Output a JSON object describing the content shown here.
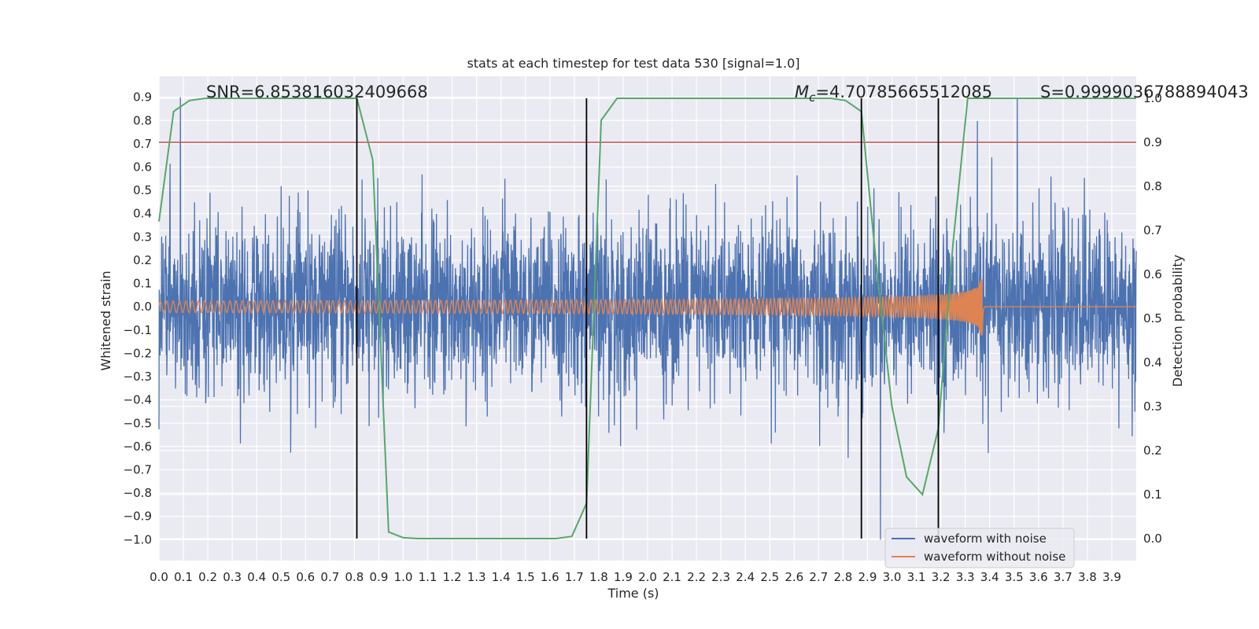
{
  "chart_data": {
    "type": "line",
    "title": "stats at each timestep for test data 530 [signal=1.0]",
    "xlabel": "Time (s)",
    "ylabel_left": "Whitened strain",
    "ylabel_right": "Detection probability",
    "xlim": [
      0.0,
      4.0
    ],
    "ylim_left": [
      -1.09,
      0.99
    ],
    "ylim_right": [
      -0.05,
      1.05
    ],
    "x_ticks": [
      0.0,
      0.1,
      0.2,
      0.3,
      0.4,
      0.5,
      0.6,
      0.7,
      0.8,
      0.9,
      1.0,
      1.1,
      1.2,
      1.3,
      1.4,
      1.5,
      1.6,
      1.7,
      1.8,
      1.9,
      2.0,
      2.1,
      2.2,
      2.3,
      2.4,
      2.5,
      2.6,
      2.7,
      2.8,
      2.9,
      3.0,
      3.1,
      3.2,
      3.3,
      3.4,
      3.5,
      3.6,
      3.7,
      3.8,
      3.9
    ],
    "x_tick_labels": [
      "0.0",
      "0.1",
      "0.2",
      "0.3",
      "0.4",
      "0.5",
      "0.6",
      "0.7",
      "0.8",
      "0.9",
      "1.0",
      "1.1",
      "1.2",
      "1.3",
      "1.4",
      "1.5",
      "1.6",
      "1.7",
      "1.8",
      "1.9",
      "2.0",
      "2.1",
      "2.2",
      "2.3",
      "2.4",
      "2.5",
      "2.6",
      "2.7",
      "2.8",
      "2.9",
      "3.0",
      "3.1",
      "3.2",
      "3.3",
      "3.4",
      "3.5",
      "3.6",
      "3.7",
      "3.8",
      "3.9"
    ],
    "y_left_ticks": [
      0.9,
      0.8,
      0.7,
      0.6,
      0.5,
      0.4,
      0.3,
      0.2,
      0.1,
      0.0,
      -0.1,
      -0.2,
      -0.3,
      -0.4,
      -0.5,
      -0.6,
      -0.7,
      -0.8,
      -0.9,
      -1.0
    ],
    "y_left_tick_labels": [
      "0.9",
      "0.8",
      "0.7",
      "0.6",
      "0.5",
      "0.4",
      "0.3",
      "0.2",
      "0.1",
      "0.0",
      "−0.1",
      "−0.2",
      "−0.3",
      "−0.4",
      "−0.5",
      "−0.6",
      "−0.7",
      "−0.8",
      "−0.9",
      "−1.0"
    ],
    "y_right_ticks": [
      1.0,
      0.9,
      0.8,
      0.7,
      0.6,
      0.5,
      0.4,
      0.3,
      0.2,
      0.1,
      0.0
    ],
    "y_right_tick_labels": [
      "1.0",
      "0.9",
      "0.8",
      "0.7",
      "0.6",
      "0.5",
      "0.4",
      "0.3",
      "0.2",
      "0.1",
      "0.0"
    ],
    "grid": true,
    "legend_position": "lower-right",
    "annotations": {
      "snr": "SNR=6.853816032409668",
      "mc_prefix": "M",
      "mc_sub": "c",
      "mc_value": "=4.70785665512085",
      "s": "S=0.9999036788894043"
    },
    "threshold": {
      "axis": "right",
      "value": 0.9,
      "color": "#c44e52"
    },
    "vertical_markers": [
      0.81,
      1.75,
      2.875,
      3.19
    ],
    "series": [
      {
        "name": "waveform with noise",
        "axis": "left",
        "color": "#4c72b0",
        "kind": "noisy strain",
        "noise_std": 0.18,
        "noise_clip": [
          -1.0,
          0.9
        ],
        "seed": 530
      },
      {
        "name": "waveform without noise",
        "axis": "left",
        "color": "#dd8452",
        "kind": "chirp",
        "merger_time": 3.37,
        "amplitude_start": 0.025,
        "amplitude_peak": 0.17,
        "frequency_start": 38,
        "frequency_end": 260,
        "ringdown_end": 3.38
      },
      {
        "name": "detection probability",
        "axis": "right",
        "color": "#55a868",
        "x": [
          0.0,
          0.06,
          0.125,
          0.19,
          0.25,
          0.31,
          0.375,
          0.44,
          0.5,
          0.56,
          0.625,
          0.69,
          0.75,
          0.81,
          0.875,
          0.94,
          1.0,
          1.06,
          1.125,
          1.19,
          1.25,
          1.31,
          1.375,
          1.44,
          1.5,
          1.56,
          1.625,
          1.69,
          1.75,
          1.81,
          1.875,
          1.94,
          2.0,
          2.06,
          2.125,
          2.19,
          2.25,
          2.31,
          2.375,
          2.44,
          2.5,
          2.56,
          2.625,
          2.69,
          2.75,
          2.81,
          2.875,
          2.94,
          3.0,
          3.06,
          3.125,
          3.19,
          3.25,
          3.31,
          3.375,
          3.44,
          3.5,
          3.56,
          3.625,
          3.69,
          3.75,
          3.81,
          3.875,
          3.94,
          4.0
        ],
        "y": [
          0.72,
          0.97,
          0.995,
          1.0,
          1.0,
          1.0,
          1.0,
          1.0,
          1.0,
          1.0,
          1.0,
          1.0,
          1.0,
          1.0,
          0.86,
          0.015,
          0.002,
          0.0,
          0.0,
          0.0,
          0.0,
          0.0,
          0.0,
          0.0,
          0.0,
          0.0,
          0.0,
          0.005,
          0.08,
          0.95,
          1.0,
          1.0,
          1.0,
          1.0,
          1.0,
          1.0,
          1.0,
          1.0,
          1.0,
          1.0,
          1.0,
          1.0,
          1.0,
          1.0,
          1.0,
          0.995,
          0.97,
          0.6,
          0.3,
          0.14,
          0.1,
          0.25,
          0.67,
          1.0,
          1.0,
          1.0,
          1.0,
          1.0,
          1.0,
          1.0,
          1.0,
          1.0,
          1.0,
          1.0,
          1.0
        ]
      }
    ]
  },
  "colors": {
    "plot_bg": "#eaeaf2",
    "grid": "#ffffff",
    "marker": "#000000",
    "legend_bg": "#eaeaf2",
    "legend_border": "#cccccc"
  }
}
